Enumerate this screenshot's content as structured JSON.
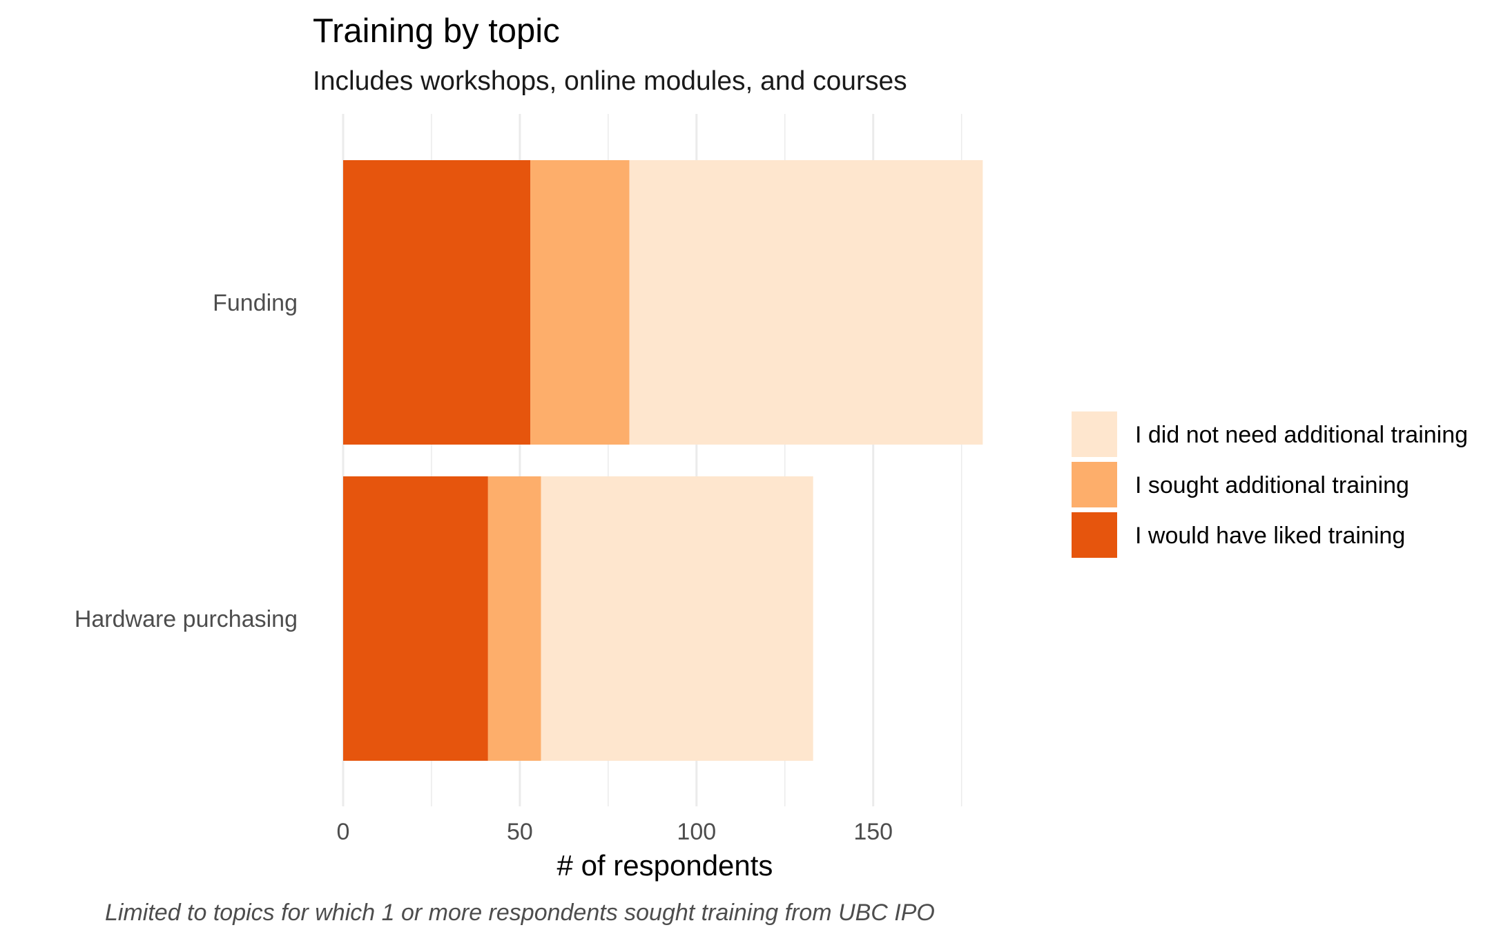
{
  "chart_data": {
    "type": "bar",
    "orientation": "horizontal",
    "stacked": true,
    "title": "Training by topic",
    "subtitle": "Includes workshops, online modules, and courses",
    "xlabel": "# of respondents",
    "ylabel": "",
    "caption": "Limited to topics for which 1 or more respondents sought training from UBC IPO",
    "categories": [
      "Funding",
      "Hardware purchasing"
    ],
    "series": [
      {
        "name": "I would have liked training",
        "color": "#e6550d",
        "values": [
          53,
          41
        ]
      },
      {
        "name": "I sought additional training",
        "color": "#fdae6b",
        "values": [
          28,
          15
        ]
      },
      {
        "name": "I did not need additional training",
        "color": "#fee6ce",
        "values": [
          100,
          77
        ]
      }
    ],
    "legend_order": [
      "I did not need additional training",
      "I sought additional training",
      "I would have liked training"
    ],
    "legend_position": "right",
    "xlim": [
      0,
      181
    ],
    "xticks": [
      0,
      50,
      100,
      150
    ],
    "grid": true
  }
}
